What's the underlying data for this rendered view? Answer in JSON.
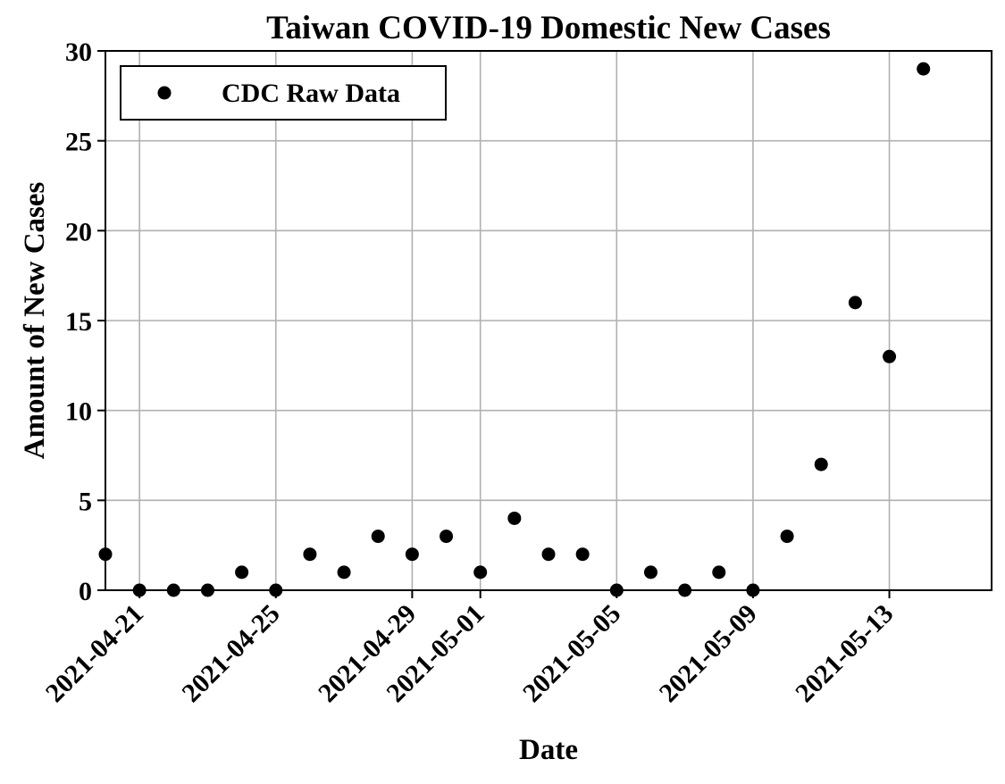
{
  "chart_data": {
    "type": "scatter",
    "title": "Taiwan COVID-19 Domestic New Cases",
    "xlabel": "Date",
    "ylabel": "Amount of New Cases",
    "xlim": [
      "2021-04-20",
      "2021-05-16"
    ],
    "ylim": [
      0,
      30
    ],
    "grid": true,
    "legend_position": "top-left",
    "x_ticks": [
      "2021-04-21",
      "2021-04-25",
      "2021-04-29",
      "2021-05-01",
      "2021-05-05",
      "2021-05-09",
      "2021-05-13"
    ],
    "y_ticks": [
      0,
      5,
      10,
      15,
      20,
      25,
      30
    ],
    "series": [
      {
        "name": "CDC Raw Data",
        "color": "#000000",
        "x": [
          "2021-04-20",
          "2021-04-21",
          "2021-04-22",
          "2021-04-23",
          "2021-04-24",
          "2021-04-25",
          "2021-04-26",
          "2021-04-27",
          "2021-04-28",
          "2021-04-29",
          "2021-04-30",
          "2021-05-01",
          "2021-05-02",
          "2021-05-03",
          "2021-05-04",
          "2021-05-05",
          "2021-05-06",
          "2021-05-07",
          "2021-05-08",
          "2021-05-09",
          "2021-05-10",
          "2021-05-11",
          "2021-05-12",
          "2021-05-13",
          "2021-05-14"
        ],
        "y": [
          2,
          0,
          0,
          0,
          1,
          0,
          2,
          1,
          3,
          2,
          3,
          1,
          4,
          2,
          2,
          0,
          1,
          0,
          1,
          0,
          3,
          7,
          16,
          13,
          29
        ]
      }
    ]
  }
}
